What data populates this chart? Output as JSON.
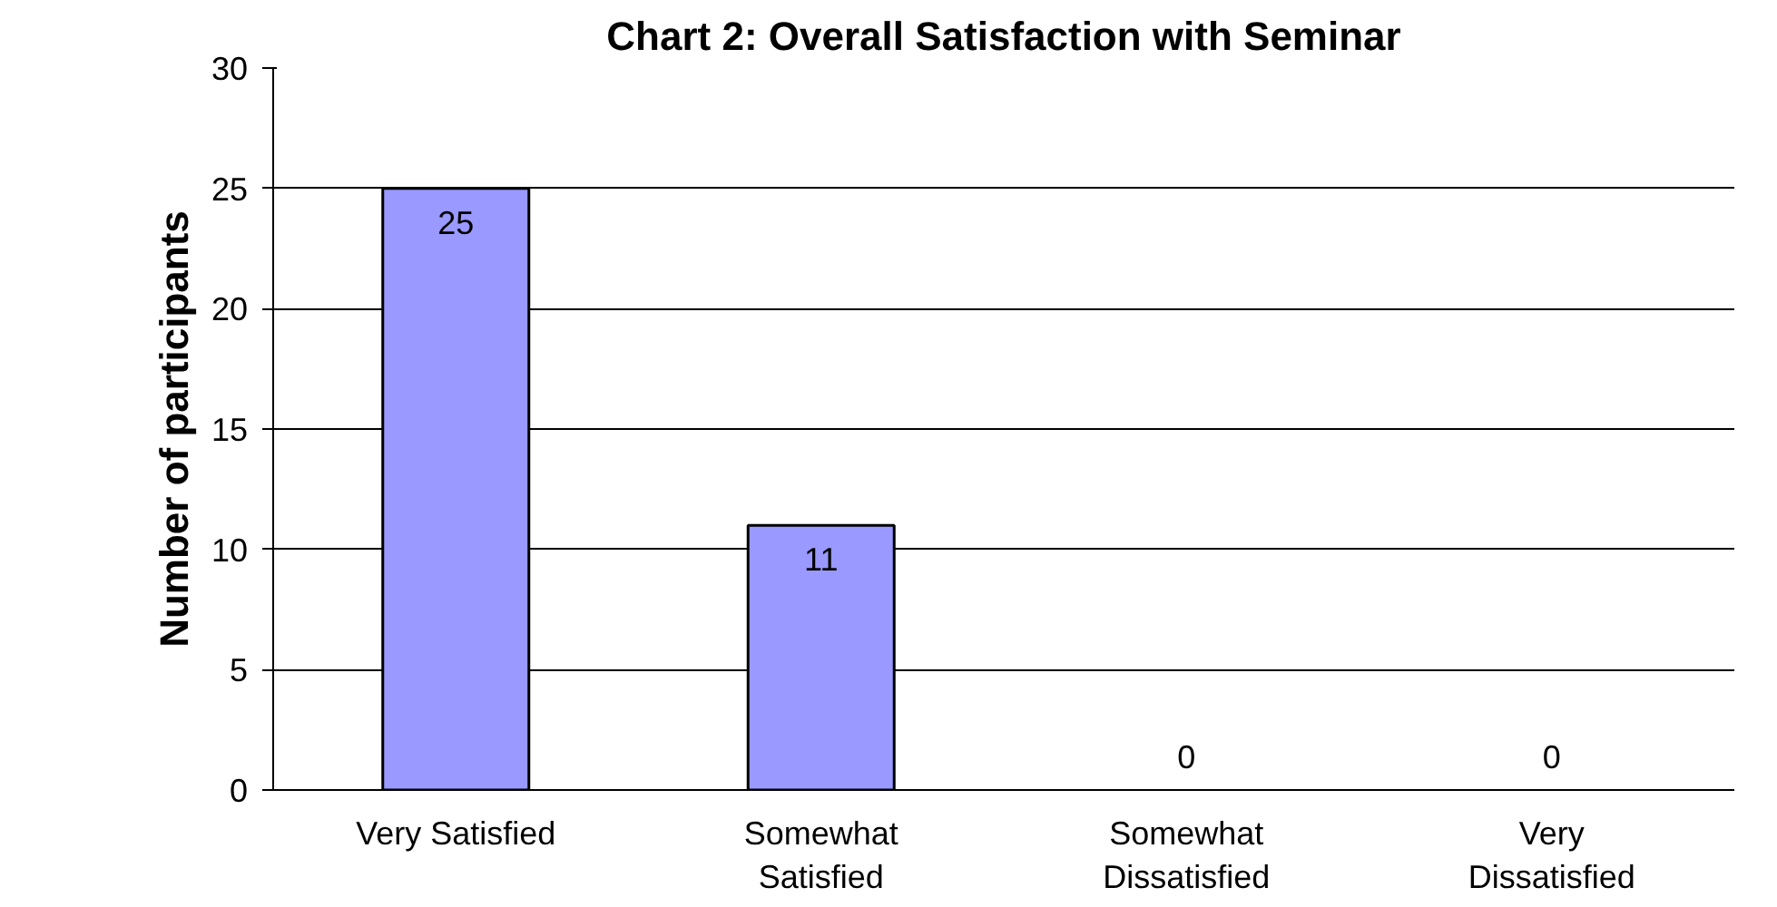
{
  "chart_data": {
    "type": "bar",
    "title": "Chart 2: Overall Satisfaction with Seminar",
    "ylabel": "Number of participants",
    "categories": [
      "Very Satisfied",
      "Somewhat Satisfied",
      "Somewhat Dissatisfied",
      "Very Dissatisfied"
    ],
    "values": [
      25,
      11,
      0,
      0
    ],
    "color": "#9999ff",
    "ylim": [
      0,
      30
    ],
    "yticks": [
      0,
      5,
      10,
      15,
      20,
      25,
      30
    ],
    "grid": "y",
    "data_labels": true
  }
}
